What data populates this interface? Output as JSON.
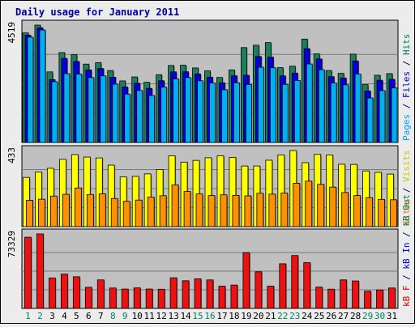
{
  "chart_data": {
    "type": "bar",
    "title": "Daily usage for January 2011",
    "categories": [
      "1",
      "2",
      "3",
      "4",
      "5",
      "6",
      "7",
      "8",
      "9",
      "10",
      "11",
      "12",
      "13",
      "14",
      "15",
      "16",
      "17",
      "18",
      "19",
      "20",
      "21",
      "22",
      "23",
      "24",
      "25",
      "26",
      "27",
      "28",
      "29",
      "30",
      "31"
    ],
    "weekend_days": [
      "1",
      "2",
      "8",
      "9",
      "15",
      "16",
      "22",
      "23",
      "29",
      "30"
    ],
    "panels": [
      {
        "id": "hits",
        "ymax": 4519,
        "ymax_label": "4519",
        "axis_labels": [
          {
            "text": "Pages",
            "color": "#00a0ff"
          },
          {
            "text": " / ",
            "color": "#000080"
          },
          {
            "text": "Files",
            "color": "#0000c0"
          },
          {
            "text": " / ",
            "color": "#000080"
          },
          {
            "text": "Hits",
            "color": "#008060"
          }
        ],
        "series": [
          {
            "name": "Hits",
            "color": "#1e7f5c",
            "values": [
              4217,
              4519,
              2717,
              3461,
              3378,
              3016,
              3074,
              2769,
              2370,
              2523,
              2317,
              2608,
              2964,
              2974,
              2870,
              2757,
              2502,
              2791,
              3653,
              3744,
              3845,
              2881,
              2937,
              3980,
              3412,
              2768,
              2661,
              3401,
              2226,
              2588,
              2650
            ]
          },
          {
            "name": "Files",
            "color": "#0000dd",
            "values": [
              4133,
              4413,
              2419,
              3236,
              3118,
              2793,
              2845,
              2511,
              2137,
              2278,
              2082,
              2377,
              2717,
              2721,
              2637,
              2512,
              2298,
              2567,
              2586,
              3310,
              3285,
              2563,
              2672,
              3611,
              3214,
              2534,
              2482,
              3138,
              1982,
              2394,
              2429
            ]
          },
          {
            "name": "Pages",
            "color": "#00b0f0",
            "values": [
              4053,
              4331,
              2340,
              2651,
              2633,
              2499,
              2563,
              2243,
              1862,
              2001,
              1809,
              2130,
              2449,
              2499,
              2374,
              2287,
              2030,
              2299,
              2231,
              2897,
              2875,
              2235,
              2388,
              3023,
              2801,
              2293,
              2219,
              2635,
              1713,
              1997,
              2098
            ]
          }
        ]
      },
      {
        "id": "visits",
        "ymax": 433,
        "ymax_label": "433",
        "axis_labels": [
          {
            "text": "Sites",
            "color": "#f08000"
          },
          {
            "text": " / ",
            "color": "#000080"
          },
          {
            "text": "Visits",
            "color": "#c8c800"
          }
        ],
        "series": [
          {
            "name": "Visits",
            "color": "#ffff00",
            "values": [
              280,
              311,
              332,
              383,
              410,
              396,
              391,
              350,
              283,
              286,
              300,
              325,
              403,
              367,
              377,
              392,
              403,
              394,
              345,
              345,
              378,
              408,
              433,
              364,
              411,
              408,
              355,
              354,
              317,
              309,
              299
            ]
          },
          {
            "name": "Sites",
            "color": "#ff9000",
            "values": [
              150,
              156,
              174,
              184,
              220,
              183,
              187,
              160,
              144,
              151,
              168,
              176,
              238,
              200,
              186,
              177,
              181,
              178,
              175,
              190,
              185,
              191,
              247,
              259,
              241,
              225,
              194,
              177,
              165,
              155,
              153
            ]
          }
        ]
      },
      {
        "id": "kbytes",
        "ymax": 73329,
        "ymax_label": "73329",
        "axis_labels": [
          {
            "text": "kB F",
            "color": "#e00000"
          },
          {
            "text": " / ",
            "color": "#000080"
          },
          {
            "text": "kB In",
            "color": "#0000c0"
          },
          {
            "text": " / ",
            "color": "#000080"
          },
          {
            "text": "kB Out",
            "color": "#008060"
          }
        ],
        "series": [
          {
            "name": "kB F",
            "color": "#ee1111",
            "values": [
              70058,
              73329,
              29963,
              33765,
              31162,
              20765,
              28066,
              20081,
              19042,
              20186,
              19080,
              18879,
              30121,
              27226,
              29094,
              28066,
              21886,
              23009,
              54939,
              36016,
              21886,
              43936,
              52040,
              45123,
              20951,
              18959,
              28059,
              27018,
              16956,
              18161,
              20086
            ]
          }
        ]
      }
    ]
  }
}
